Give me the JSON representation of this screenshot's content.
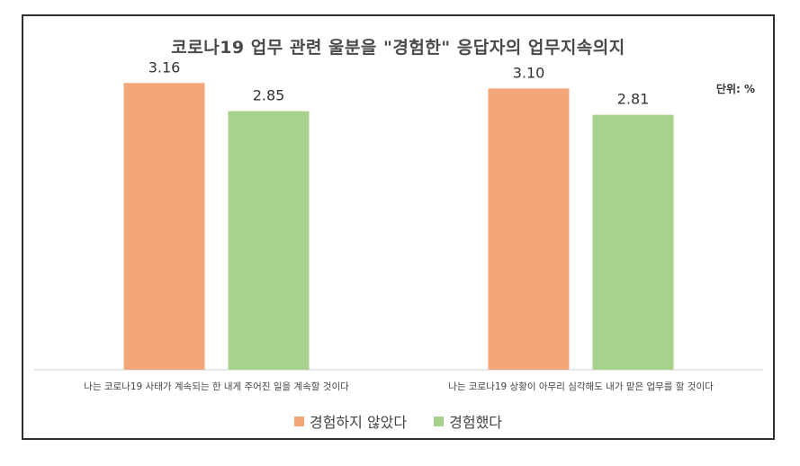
{
  "chart_data": {
    "type": "bar",
    "title": "코로나19 업무 관련 울분을 \"경험한\" 응답자의 업무지속의지",
    "unit_label": "단위: %",
    "categories": [
      "나는 코로나19 사태가 계속되는 한 내게 주어진 일을 계속할 것이다",
      "나는 코로나19 상황이 아무리 심각해도 내가 맡은 업무를 할 것이다"
    ],
    "series": [
      {
        "name": "경험하지 않았다",
        "values": [
          3.16,
          3.1
        ],
        "labels": [
          "3.16",
          "3.10"
        ],
        "color": "#f2a679"
      },
      {
        "name": "경험했다",
        "values": [
          2.85,
          2.81
        ],
        "labels": [
          "2.85",
          "2.81"
        ],
        "color": "#a9d18e"
      }
    ],
    "ylim": [
      0,
      3.5
    ],
    "grid": false,
    "legend_position": "bottom"
  }
}
